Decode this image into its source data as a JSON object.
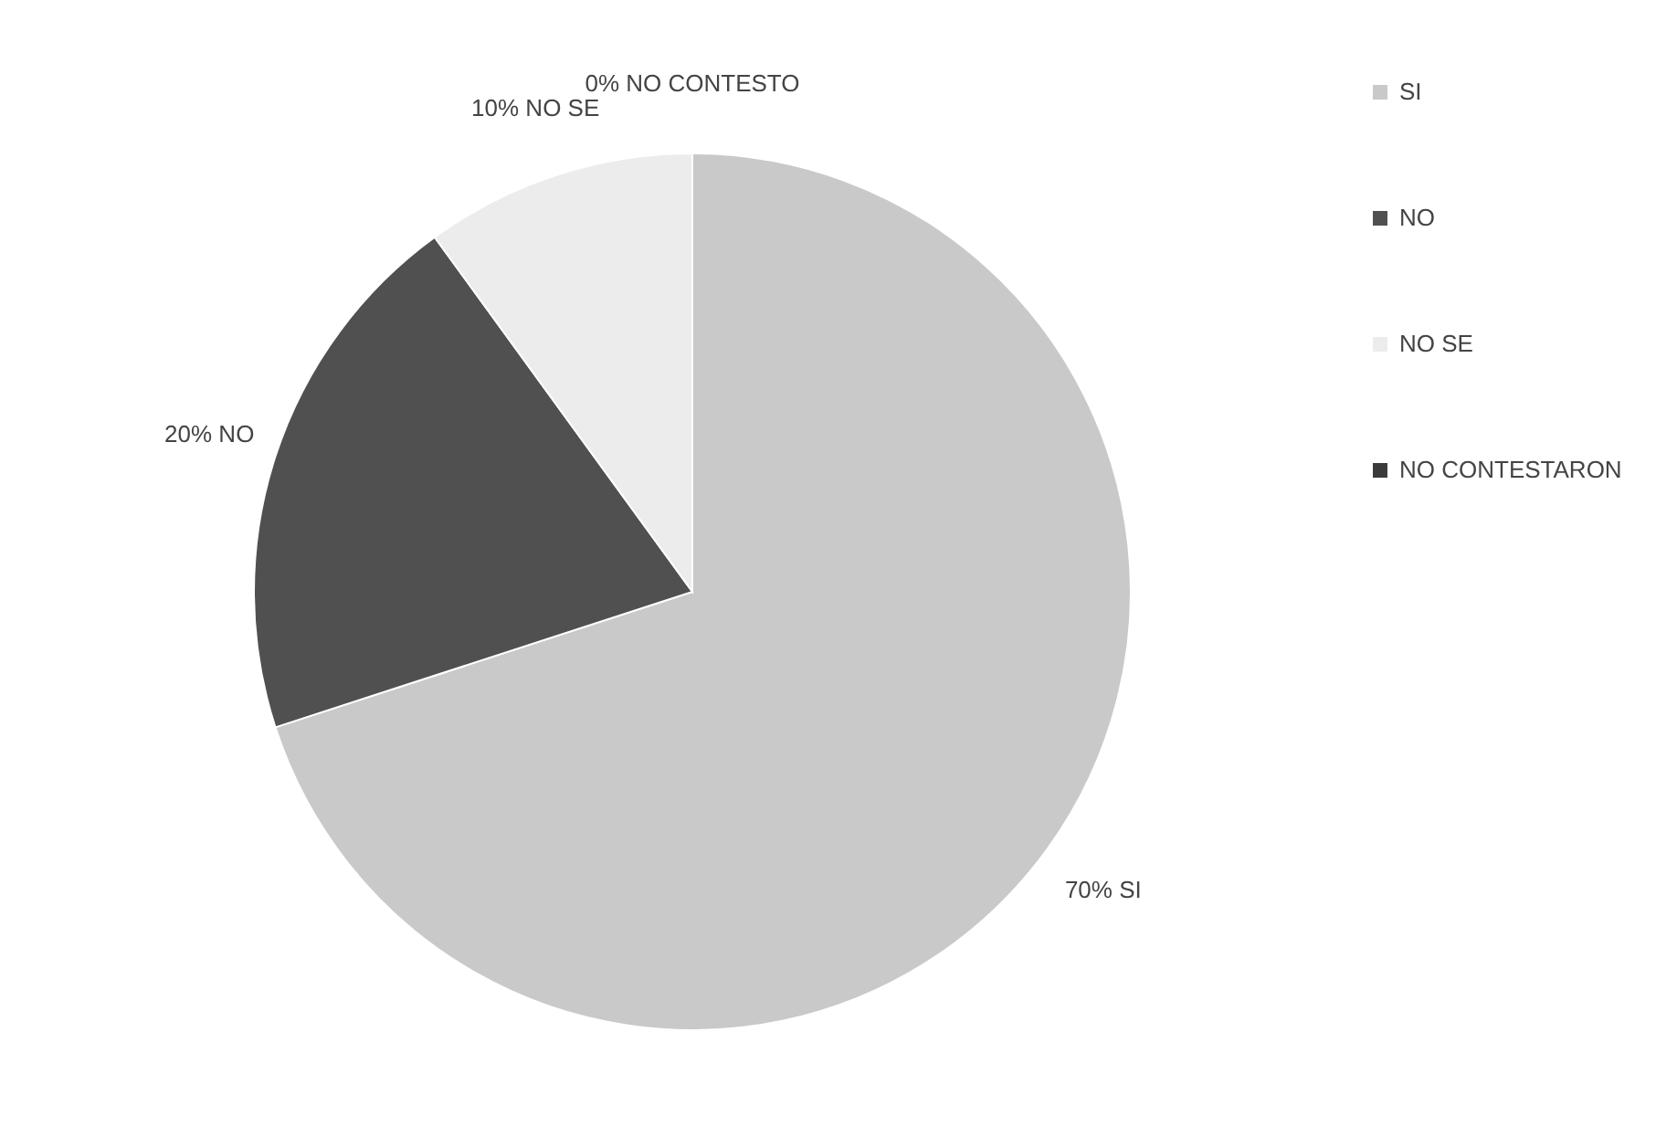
{
  "chart_data": {
    "type": "pie",
    "categories": [
      "SI",
      "NO",
      "NO SE",
      "NO CONTESTARON"
    ],
    "values": [
      70,
      20,
      10,
      0
    ],
    "colors": [
      "#c9c9c9",
      "#505050",
      "#ececec",
      "#3a3a3a"
    ],
    "value_labels": [
      "70% SI",
      "20% NO",
      "10% NO SE",
      "0% NO CONTESTO"
    ],
    "legend": "right"
  }
}
